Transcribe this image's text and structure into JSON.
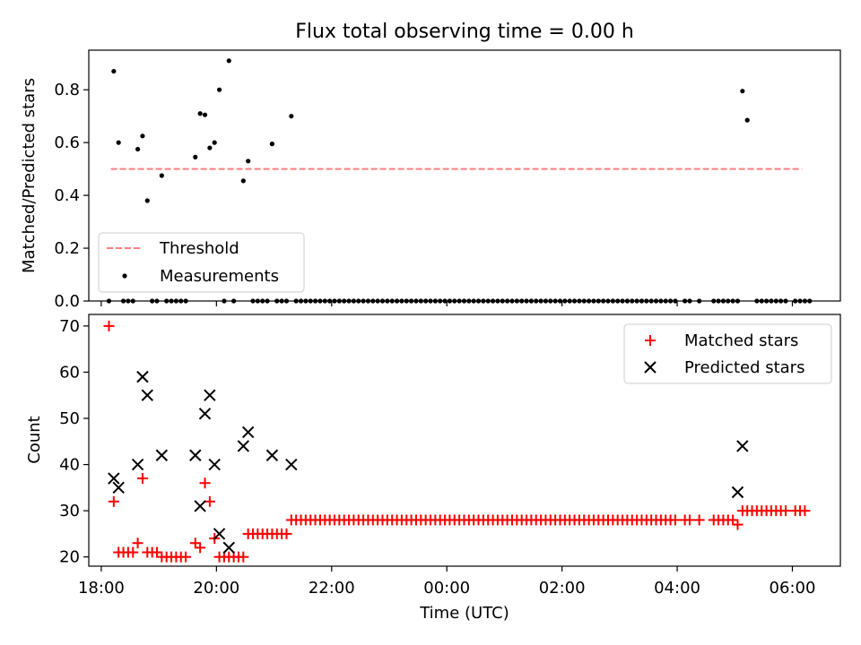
{
  "title": "Flux total observing time = 0.00 h",
  "colors": {
    "threshold": "#ff7f7f",
    "measurements": "#000000",
    "matched": "#ff0000",
    "predicted": "#000000"
  },
  "chart_data": [
    {
      "type": "scatter",
      "panel": "top",
      "title": "Flux total observing time = 0.00 h",
      "ylabel": "Matched/Predicted stars",
      "ylim": [
        0,
        0.95
      ],
      "yticks": [
        0.0,
        0.2,
        0.4,
        0.6,
        0.8
      ],
      "ytick_labels": [
        "0.0",
        "0.2",
        "0.4",
        "0.6",
        "0.8"
      ],
      "xlim": [
        "17:47",
        "06:50"
      ],
      "grid": false,
      "legend": {
        "placement": "lower-left",
        "entries": [
          "Threshold",
          "Measurements"
        ]
      },
      "threshold": {
        "name": "Threshold",
        "y": 0.5,
        "x_start": "18:10",
        "x_end": "06:10"
      },
      "measurements": {
        "name": "Measurements",
        "points": [
          [
            "18:13",
            0.87
          ],
          [
            "18:18",
            0.6
          ],
          [
            "18:38",
            0.575
          ],
          [
            "18:43",
            0.625
          ],
          [
            "18:48",
            0.38
          ],
          [
            "19:03",
            0.475
          ],
          [
            "19:38",
            0.545
          ],
          [
            "19:43",
            0.71
          ],
          [
            "19:48",
            0.705
          ],
          [
            "19:53",
            0.58
          ],
          [
            "19:58",
            0.6
          ],
          [
            "20:03",
            0.8
          ],
          [
            "20:13",
            0.91
          ],
          [
            "20:28",
            0.455
          ],
          [
            "20:33",
            0.53
          ],
          [
            "20:58",
            0.595
          ],
          [
            "21:18",
            0.7
          ],
          [
            "05:08",
            0.795
          ],
          [
            "05:13",
            0.685
          ]
        ],
        "zero_times": [
          "18:08",
          "18:23",
          "18:28",
          "18:33",
          "18:53",
          "18:58",
          "19:08",
          "19:13",
          "19:18",
          "19:23",
          "19:28",
          "20:08",
          "20:18",
          "20:38",
          "20:43",
          "20:48",
          "20:53",
          "21:03",
          "21:08",
          "21:13",
          "21:23",
          "21:28",
          "21:33",
          "21:38",
          "21:43",
          "21:48",
          "21:53",
          "21:58",
          "22:03",
          "22:08",
          "22:13",
          "22:18",
          "22:23",
          "22:28",
          "22:33",
          "22:38",
          "22:43",
          "22:48",
          "22:53",
          "22:58",
          "23:03",
          "23:08",
          "23:13",
          "23:18",
          "23:23",
          "23:28",
          "23:33",
          "23:38",
          "23:43",
          "23:48",
          "23:53",
          "23:58",
          "00:03",
          "00:08",
          "00:13",
          "00:18",
          "00:23",
          "00:28",
          "00:33",
          "00:38",
          "00:43",
          "00:48",
          "00:53",
          "00:58",
          "01:03",
          "01:08",
          "01:13",
          "01:18",
          "01:23",
          "01:28",
          "01:33",
          "01:38",
          "01:43",
          "01:48",
          "01:53",
          "01:58",
          "02:03",
          "02:08",
          "02:13",
          "02:18",
          "02:23",
          "02:28",
          "02:33",
          "02:38",
          "02:43",
          "02:48",
          "02:53",
          "02:58",
          "03:03",
          "03:08",
          "03:13",
          "03:18",
          "03:23",
          "03:28",
          "03:33",
          "03:38",
          "03:43",
          "03:48",
          "03:53",
          "03:58",
          "04:08",
          "04:13",
          "04:23",
          "04:38",
          "04:43",
          "04:48",
          "04:53",
          "04:58",
          "05:03",
          "05:23",
          "05:28",
          "05:33",
          "05:38",
          "05:43",
          "05:48",
          "05:53",
          "06:03",
          "06:08",
          "06:13",
          "06:18"
        ]
      }
    },
    {
      "type": "scatter",
      "panel": "bottom",
      "xlabel": "Time (UTC)",
      "ylabel": "Count",
      "ylim": [
        18,
        72.5
      ],
      "yticks": [
        20,
        30,
        40,
        50,
        60,
        70
      ],
      "ytick_labels": [
        "20",
        "30",
        "40",
        "50",
        "60",
        "70"
      ],
      "xlim": [
        "17:47",
        "06:50"
      ],
      "xticks": [
        "18:00",
        "20:00",
        "22:00",
        "00:00",
        "02:00",
        "04:00",
        "06:00"
      ],
      "grid": false,
      "legend": {
        "placement": "upper-right",
        "entries": [
          "Matched stars",
          "Predicted stars"
        ]
      },
      "series": [
        {
          "name": "Matched stars",
          "marker": "plus",
          "points": [
            [
              "18:08",
              70
            ],
            [
              "18:13",
              32
            ],
            [
              "18:18",
              21
            ],
            [
              "18:23",
              21
            ],
            [
              "18:28",
              21
            ],
            [
              "18:33",
              21
            ],
            [
              "18:38",
              23
            ],
            [
              "18:43",
              37
            ],
            [
              "18:48",
              21
            ],
            [
              "18:53",
              21
            ],
            [
              "18:58",
              21
            ],
            [
              "19:03",
              20
            ],
            [
              "19:08",
              20
            ],
            [
              "19:13",
              20
            ],
            [
              "19:18",
              20
            ],
            [
              "19:23",
              20
            ],
            [
              "19:28",
              20
            ],
            [
              "19:38",
              23
            ],
            [
              "19:43",
              22
            ],
            [
              "19:48",
              36
            ],
            [
              "19:53",
              32
            ],
            [
              "19:58",
              24
            ],
            [
              "20:03",
              20
            ],
            [
              "20:08",
              20
            ],
            [
              "20:13",
              20
            ],
            [
              "20:18",
              20
            ],
            [
              "20:23",
              20
            ],
            [
              "20:28",
              20
            ],
            [
              "20:33",
              25
            ],
            [
              "20:38",
              25
            ],
            [
              "20:43",
              25
            ],
            [
              "20:48",
              25
            ],
            [
              "20:53",
              25
            ],
            [
              "20:58",
              25
            ],
            [
              "21:03",
              25
            ],
            [
              "21:08",
              25
            ],
            [
              "21:13",
              25
            ],
            [
              "21:18",
              28
            ],
            [
              "21:23",
              28
            ],
            [
              "21:28",
              28
            ],
            [
              "21:33",
              28
            ],
            [
              "21:38",
              28
            ],
            [
              "21:43",
              28
            ],
            [
              "21:48",
              28
            ],
            [
              "21:53",
              28
            ],
            [
              "21:58",
              28
            ],
            [
              "22:03",
              28
            ],
            [
              "22:08",
              28
            ],
            [
              "22:13",
              28
            ],
            [
              "22:18",
              28
            ],
            [
              "22:23",
              28
            ],
            [
              "22:28",
              28
            ],
            [
              "22:33",
              28
            ],
            [
              "22:38",
              28
            ],
            [
              "22:43",
              28
            ],
            [
              "22:48",
              28
            ],
            [
              "22:53",
              28
            ],
            [
              "22:58",
              28
            ],
            [
              "23:03",
              28
            ],
            [
              "23:08",
              28
            ],
            [
              "23:13",
              28
            ],
            [
              "23:18",
              28
            ],
            [
              "23:23",
              28
            ],
            [
              "23:28",
              28
            ],
            [
              "23:33",
              28
            ],
            [
              "23:38",
              28
            ],
            [
              "23:43",
              28
            ],
            [
              "23:48",
              28
            ],
            [
              "23:53",
              28
            ],
            [
              "23:58",
              28
            ],
            [
              "00:03",
              28
            ],
            [
              "00:08",
              28
            ],
            [
              "00:13",
              28
            ],
            [
              "00:18",
              28
            ],
            [
              "00:23",
              28
            ],
            [
              "00:28",
              28
            ],
            [
              "00:33",
              28
            ],
            [
              "00:38",
              28
            ],
            [
              "00:43",
              28
            ],
            [
              "00:48",
              28
            ],
            [
              "00:53",
              28
            ],
            [
              "00:58",
              28
            ],
            [
              "01:03",
              28
            ],
            [
              "01:08",
              28
            ],
            [
              "01:13",
              28
            ],
            [
              "01:18",
              28
            ],
            [
              "01:23",
              28
            ],
            [
              "01:28",
              28
            ],
            [
              "01:33",
              28
            ],
            [
              "01:38",
              28
            ],
            [
              "01:43",
              28
            ],
            [
              "01:48",
              28
            ],
            [
              "01:53",
              28
            ],
            [
              "01:58",
              28
            ],
            [
              "02:03",
              28
            ],
            [
              "02:08",
              28
            ],
            [
              "02:13",
              28
            ],
            [
              "02:18",
              28
            ],
            [
              "02:23",
              28
            ],
            [
              "02:28",
              28
            ],
            [
              "02:33",
              28
            ],
            [
              "02:38",
              28
            ],
            [
              "02:43",
              28
            ],
            [
              "02:48",
              28
            ],
            [
              "02:53",
              28
            ],
            [
              "02:58",
              28
            ],
            [
              "03:03",
              28
            ],
            [
              "03:08",
              28
            ],
            [
              "03:13",
              28
            ],
            [
              "03:18",
              28
            ],
            [
              "03:23",
              28
            ],
            [
              "03:28",
              28
            ],
            [
              "03:33",
              28
            ],
            [
              "03:38",
              28
            ],
            [
              "03:43",
              28
            ],
            [
              "03:48",
              28
            ],
            [
              "03:53",
              28
            ],
            [
              "03:58",
              28
            ],
            [
              "04:08",
              28
            ],
            [
              "04:13",
              28
            ],
            [
              "04:23",
              28
            ],
            [
              "04:38",
              28
            ],
            [
              "04:43",
              28
            ],
            [
              "04:48",
              28
            ],
            [
              "04:53",
              28
            ],
            [
              "04:58",
              28
            ],
            [
              "05:03",
              27
            ],
            [
              "05:08",
              30
            ],
            [
              "05:13",
              30
            ],
            [
              "05:18",
              30
            ],
            [
              "05:23",
              30
            ],
            [
              "05:28",
              30
            ],
            [
              "05:33",
              30
            ],
            [
              "05:38",
              30
            ],
            [
              "05:43",
              30
            ],
            [
              "05:48",
              30
            ],
            [
              "05:53",
              30
            ],
            [
              "06:03",
              30
            ],
            [
              "06:08",
              30
            ],
            [
              "06:13",
              30
            ]
          ]
        },
        {
          "name": "Predicted stars",
          "marker": "x",
          "points": [
            [
              "18:13",
              37
            ],
            [
              "18:18",
              35
            ],
            [
              "18:38",
              40
            ],
            [
              "18:43",
              59
            ],
            [
              "18:48",
              55
            ],
            [
              "19:03",
              42
            ],
            [
              "19:38",
              42
            ],
            [
              "19:43",
              31
            ],
            [
              "19:48",
              51
            ],
            [
              "19:53",
              55
            ],
            [
              "19:58",
              40
            ],
            [
              "20:03",
              25
            ],
            [
              "20:13",
              22
            ],
            [
              "20:28",
              44
            ],
            [
              "20:33",
              47
            ],
            [
              "20:58",
              42
            ],
            [
              "21:18",
              40
            ],
            [
              "05:03",
              34
            ],
            [
              "05:08",
              44
            ]
          ]
        }
      ]
    }
  ]
}
